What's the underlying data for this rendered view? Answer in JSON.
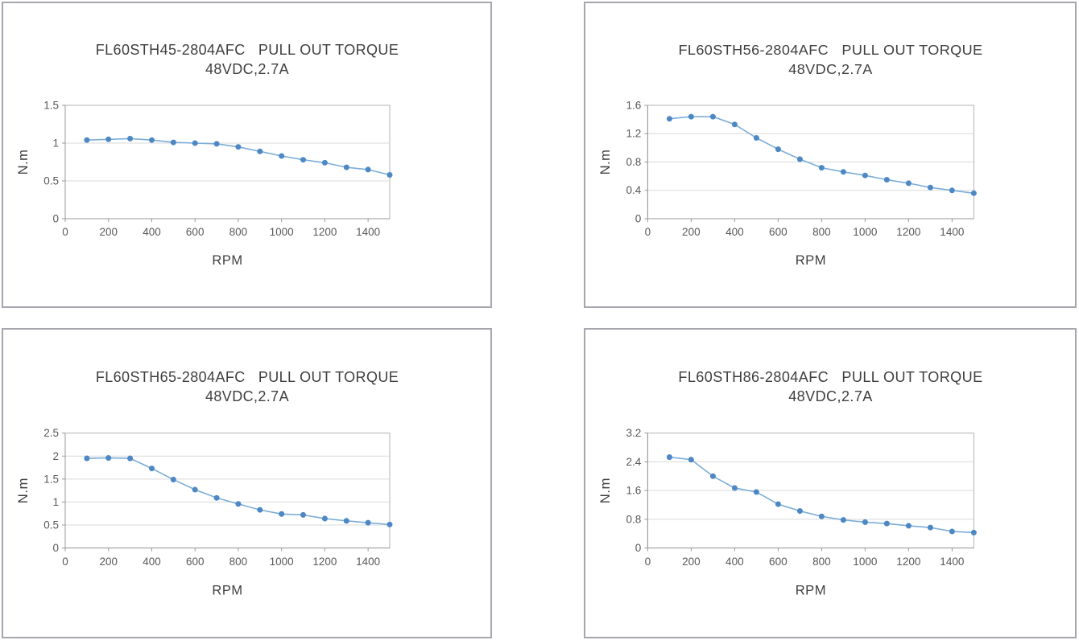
{
  "page": {
    "background": "#ffffff",
    "description_labels": {
      "torque_unit": "N.m",
      "speed_unit": "RPM"
    }
  },
  "style": {
    "panel_border_color": "#a6a6ae",
    "plot_border_color": "#b3b3b8",
    "axis_color": "#98989d",
    "grid_color": "#d9d9d9",
    "line_color": "#7badd9",
    "marker_color": "#4e88c4",
    "title_color": "#3f3f3f",
    "tick_color": "#595959"
  },
  "chart_data": [
    {
      "type": "line",
      "title_model": "FL60STH45-2804AFC",
      "title_text": "PULL OUT TORQUE",
      "subtitle": "48VDC,2.7A",
      "xlabel": "RPM",
      "ylabel": "N.m",
      "x": [
        100,
        200,
        300,
        400,
        500,
        600,
        700,
        800,
        900,
        1000,
        1100,
        1200,
        1300,
        1400,
        1500
      ],
      "values": [
        1.04,
        1.05,
        1.06,
        1.04,
        1.01,
        1.0,
        0.99,
        0.95,
        0.89,
        0.83,
        0.78,
        0.74,
        0.68,
        0.65,
        0.58
      ],
      "xlim": [
        0,
        1500
      ],
      "ylim": [
        0,
        1.5
      ],
      "xticks": [
        0,
        200,
        400,
        600,
        800,
        1000,
        1200,
        1400
      ],
      "xtick_labels": [
        "0",
        "200",
        "400",
        "600",
        "800",
        "1000",
        "1200",
        "1400"
      ],
      "yticks": [
        0,
        0.5,
        1,
        1.5
      ],
      "ytick_labels": [
        "0",
        "0.5",
        "1",
        "1.5"
      ],
      "grid": true,
      "legend": false
    },
    {
      "type": "line",
      "title_model": "FL60STH56-2804AFC",
      "title_text": "PULL OUT TORQUE",
      "subtitle": "48VDC,2.7A",
      "xlabel": "RPM",
      "ylabel": "N.m",
      "x": [
        100,
        200,
        300,
        400,
        500,
        600,
        700,
        800,
        900,
        1000,
        1100,
        1200,
        1300,
        1400,
        1500
      ],
      "values": [
        1.41,
        1.44,
        1.44,
        1.33,
        1.14,
        0.98,
        0.84,
        0.72,
        0.66,
        0.61,
        0.55,
        0.5,
        0.44,
        0.4,
        0.36
      ],
      "xlim": [
        0,
        1500
      ],
      "ylim": [
        0,
        1.6
      ],
      "xticks": [
        0,
        200,
        400,
        600,
        800,
        1000,
        1200,
        1400
      ],
      "xtick_labels": [
        "0",
        "200",
        "400",
        "600",
        "800",
        "1000",
        "1200",
        "1400"
      ],
      "yticks": [
        0,
        0.4,
        0.8,
        1.2,
        1.6
      ],
      "ytick_labels": [
        "0",
        "0.4",
        "0.8",
        "1.2",
        "1.6"
      ],
      "grid": true,
      "legend": false
    },
    {
      "type": "line",
      "title_model": "FL60STH65-2804AFC",
      "title_text": "PULL OUT TORQUE",
      "subtitle": "48VDC,2.7A",
      "xlabel": "RPM",
      "ylabel": "N.m",
      "x": [
        100,
        200,
        300,
        400,
        500,
        600,
        700,
        800,
        900,
        1000,
        1100,
        1200,
        1300,
        1400,
        1500
      ],
      "values": [
        1.95,
        1.96,
        1.95,
        1.73,
        1.49,
        1.27,
        1.09,
        0.96,
        0.83,
        0.74,
        0.72,
        0.64,
        0.59,
        0.55,
        0.51
      ],
      "xlim": [
        0,
        1500
      ],
      "ylim": [
        0,
        2.5
      ],
      "xticks": [
        0,
        200,
        400,
        600,
        800,
        1000,
        1200,
        1400
      ],
      "xtick_labels": [
        "0",
        "200",
        "400",
        "600",
        "800",
        "1000",
        "1200",
        "1400"
      ],
      "yticks": [
        0,
        0.5,
        1,
        1.5,
        2,
        2.5
      ],
      "ytick_labels": [
        "0",
        "0.5",
        "1",
        "1.5",
        "2",
        "2.5"
      ],
      "grid": true,
      "legend": false
    },
    {
      "type": "line",
      "title_model": "FL60STH86-2804AFC",
      "title_text": "PULL OUT TORQUE",
      "subtitle": "48VDC,2.7A",
      "xlabel": "RPM",
      "ylabel": "N.m",
      "x": [
        100,
        200,
        300,
        400,
        500,
        600,
        700,
        800,
        900,
        1000,
        1100,
        1200,
        1300,
        1400,
        1500
      ],
      "values": [
        2.53,
        2.46,
        2.0,
        1.67,
        1.56,
        1.22,
        1.03,
        0.88,
        0.78,
        0.72,
        0.68,
        0.62,
        0.57,
        0.46,
        0.43
      ],
      "xlim": [
        0,
        1500
      ],
      "ylim": [
        0,
        3.2
      ],
      "xticks": [
        0,
        200,
        400,
        600,
        800,
        1000,
        1200,
        1400
      ],
      "xtick_labels": [
        "0",
        "200",
        "400",
        "600",
        "800",
        "1000",
        "1200",
        "1400"
      ],
      "yticks": [
        0,
        0.8,
        1.6,
        2.4,
        3.2
      ],
      "ytick_labels": [
        "0",
        "0.8",
        "1.6",
        "2.4",
        "3.2"
      ],
      "grid": true,
      "legend": false
    }
  ]
}
